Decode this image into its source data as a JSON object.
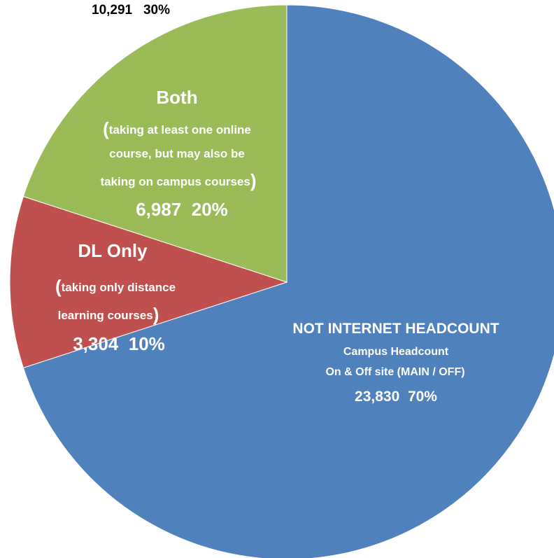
{
  "chart_data": {
    "type": "pie",
    "total_label": {
      "count": "10,291",
      "pct": "30%"
    },
    "slices": [
      {
        "key": "not_internet",
        "value": 23830,
        "percent": 70,
        "color": "#4F81BD",
        "title": "NOT INTERNET HEADCOUNT",
        "desc1": "Campus Headcount",
        "desc2": "On & Off site (MAIN / OFF)",
        "count": "23,830",
        "pct": "70%"
      },
      {
        "key": "dl_only",
        "value": 3304,
        "percent": 10,
        "color": "#C0504D",
        "title": "DL Only",
        "paren_open": "(",
        "desc1": "taking only distance",
        "desc2": "learning courses",
        "paren_close": ")",
        "count": "3,304",
        "pct": "10%"
      },
      {
        "key": "both",
        "value": 6987,
        "percent": 20,
        "color": "#9BBB59",
        "title": "Both",
        "paren_open": "(",
        "desc1": "taking at least one online",
        "desc2": "course, but may also be",
        "desc3": "taking on campus courses",
        "paren_close": ")",
        "count": "6,987",
        "pct": "20%"
      }
    ]
  }
}
